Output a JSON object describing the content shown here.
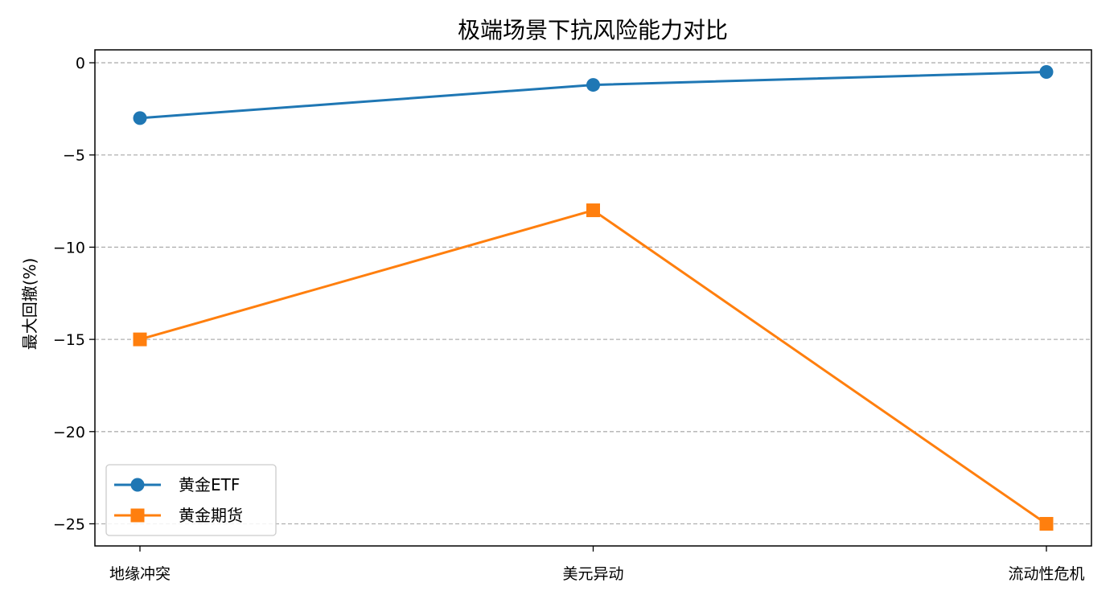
{
  "chart_data": {
    "type": "line",
    "title": "极端场景下抗风险能力对比",
    "xlabel": "",
    "ylabel": "最大回撤(%)",
    "categories": [
      "地缘冲突",
      "美元异动",
      "流动性危机"
    ],
    "ylim": [
      -26.2,
      0.7
    ],
    "yticks": [
      0,
      -5,
      -10,
      -15,
      -20,
      -25
    ],
    "ytick_labels": [
      "0",
      "−5",
      "−10",
      "−15",
      "−20",
      "−25"
    ],
    "grid": "horizontal dashed",
    "legend_position": "lower-left",
    "series": [
      {
        "name": "黄金ETF",
        "values": [
          -3,
          -1.2,
          -0.5
        ],
        "color": "#1f77b4",
        "marker": "circle"
      },
      {
        "name": "黄金期货",
        "values": [
          -15,
          -8,
          -25
        ],
        "color": "#ff7f0e",
        "marker": "square"
      }
    ]
  }
}
